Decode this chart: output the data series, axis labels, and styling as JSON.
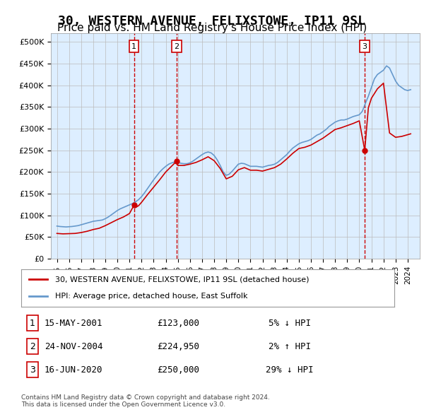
{
  "title": "30, WESTERN AVENUE, FELIXSTOWE, IP11 9SL",
  "subtitle": "Price paid vs. HM Land Registry's House Price Index (HPI)",
  "title_fontsize": 13,
  "subtitle_fontsize": 11,
  "legend_line1": "30, WESTERN AVENUE, FELIXSTOWE, IP11 9SL (detached house)",
  "legend_line2": "HPI: Average price, detached house, East Suffolk",
  "footer": "Contains HM Land Registry data © Crown copyright and database right 2024.\nThis data is licensed under the Open Government Licence v3.0.",
  "sales": [
    {
      "num": 1,
      "date": "15-MAY-2001",
      "price": 123000,
      "hpi_diff": "5% ↓ HPI",
      "year": 2001.37
    },
    {
      "num": 2,
      "date": "24-NOV-2004",
      "price": 224950,
      "hpi_diff": "2% ↑ HPI",
      "year": 2004.9
    },
    {
      "num": 3,
      "date": "16-JUN-2020",
      "price": 250000,
      "hpi_diff": "29% ↓ HPI",
      "year": 2020.45
    }
  ],
  "hpi_color": "#6699cc",
  "price_color": "#cc0000",
  "vline_color": "#cc0000",
  "background_color": "#ddeeff",
  "grid_color": "#bbbbbb",
  "ylim": [
    0,
    520000
  ],
  "yticks": [
    0,
    50000,
    100000,
    150000,
    200000,
    250000,
    300000,
    350000,
    400000,
    450000,
    500000
  ],
  "hpi_data": {
    "years": [
      1995.0,
      1995.25,
      1995.5,
      1995.75,
      1996.0,
      1996.25,
      1996.5,
      1996.75,
      1997.0,
      1997.25,
      1997.5,
      1997.75,
      1998.0,
      1998.25,
      1998.5,
      1998.75,
      1999.0,
      1999.25,
      1999.5,
      1999.75,
      2000.0,
      2000.25,
      2000.5,
      2000.75,
      2001.0,
      2001.25,
      2001.5,
      2001.75,
      2002.0,
      2002.25,
      2002.5,
      2002.75,
      2003.0,
      2003.25,
      2003.5,
      2003.75,
      2004.0,
      2004.25,
      2004.5,
      2004.75,
      2005.0,
      2005.25,
      2005.5,
      2005.75,
      2006.0,
      2006.25,
      2006.5,
      2006.75,
      2007.0,
      2007.25,
      2007.5,
      2007.75,
      2008.0,
      2008.25,
      2008.5,
      2008.75,
      2009.0,
      2009.25,
      2009.5,
      2009.75,
      2010.0,
      2010.25,
      2010.5,
      2010.75,
      2011.0,
      2011.25,
      2011.5,
      2011.75,
      2012.0,
      2012.25,
      2012.5,
      2012.75,
      2013.0,
      2013.25,
      2013.5,
      2013.75,
      2014.0,
      2014.25,
      2014.5,
      2014.75,
      2015.0,
      2015.25,
      2015.5,
      2015.75,
      2016.0,
      2016.25,
      2016.5,
      2016.75,
      2017.0,
      2017.25,
      2017.5,
      2017.75,
      2018.0,
      2018.25,
      2018.5,
      2018.75,
      2019.0,
      2019.25,
      2019.5,
      2019.75,
      2020.0,
      2020.25,
      2020.5,
      2020.75,
      2021.0,
      2021.25,
      2021.5,
      2021.75,
      2022.0,
      2022.25,
      2022.5,
      2022.75,
      2023.0,
      2023.25,
      2023.5,
      2023.75,
      2024.0,
      2024.25
    ],
    "values": [
      75000,
      74000,
      73500,
      73000,
      73500,
      74000,
      75000,
      76000,
      78000,
      80000,
      82000,
      84000,
      86000,
      87000,
      88000,
      89000,
      92000,
      96000,
      101000,
      106000,
      111000,
      115000,
      118000,
      121000,
      124000,
      127000,
      131000,
      136000,
      143000,
      152000,
      162000,
      172000,
      182000,
      191000,
      200000,
      207000,
      213000,
      218000,
      221000,
      223000,
      222000,
      220000,
      219000,
      219000,
      221000,
      225000,
      230000,
      235000,
      240000,
      244000,
      246000,
      244000,
      238000,
      228000,
      215000,
      200000,
      192000,
      195000,
      202000,
      210000,
      218000,
      220000,
      219000,
      216000,
      213000,
      213000,
      213000,
      212000,
      211000,
      213000,
      215000,
      216000,
      218000,
      222000,
      228000,
      234000,
      240000,
      248000,
      255000,
      260000,
      265000,
      268000,
      270000,
      272000,
      275000,
      280000,
      285000,
      288000,
      293000,
      298000,
      305000,
      310000,
      315000,
      318000,
      320000,
      320000,
      322000,
      325000,
      328000,
      330000,
      332000,
      340000,
      358000,
      375000,
      395000,
      415000,
      425000,
      430000,
      435000,
      445000,
      440000,
      425000,
      410000,
      400000,
      395000,
      390000,
      388000,
      390000
    ]
  },
  "price_data": {
    "years": [
      1995.0,
      1995.5,
      1996.0,
      1996.5,
      1997.0,
      1997.5,
      1998.0,
      1998.5,
      1999.0,
      1999.5,
      2000.0,
      2000.5,
      2001.0,
      2001.37,
      2001.5,
      2001.75,
      2002.0,
      2002.5,
      2003.0,
      2003.5,
      2004.0,
      2004.9,
      2005.0,
      2005.5,
      2006.0,
      2006.5,
      2007.0,
      2007.5,
      2008.0,
      2008.5,
      2009.0,
      2009.5,
      2010.0,
      2010.5,
      2011.0,
      2011.5,
      2012.0,
      2012.5,
      2013.0,
      2013.5,
      2014.0,
      2014.5,
      2015.0,
      2015.5,
      2016.0,
      2016.5,
      2017.0,
      2017.5,
      2018.0,
      2018.5,
      2019.0,
      2019.5,
      2020.0,
      2020.45,
      2020.75,
      2021.0,
      2021.5,
      2022.0,
      2022.5,
      2023.0,
      2023.5,
      2024.0,
      2024.25
    ],
    "values": [
      58000,
      57000,
      57500,
      58000,
      60000,
      63000,
      67000,
      70000,
      76000,
      83000,
      90000,
      96000,
      104000,
      123000,
      118000,
      122000,
      130000,
      148000,
      165000,
      182000,
      200000,
      224950,
      215000,
      215000,
      218000,
      222000,
      228000,
      235000,
      226000,
      208000,
      184000,
      190000,
      205000,
      210000,
      204000,
      204000,
      202000,
      206000,
      210000,
      218000,
      230000,
      243000,
      254000,
      257000,
      262000,
      270000,
      278000,
      288000,
      298000,
      302000,
      307000,
      312000,
      318000,
      250000,
      348000,
      370000,
      392000,
      405000,
      290000,
      280000,
      282000,
      286000,
      288000
    ]
  }
}
